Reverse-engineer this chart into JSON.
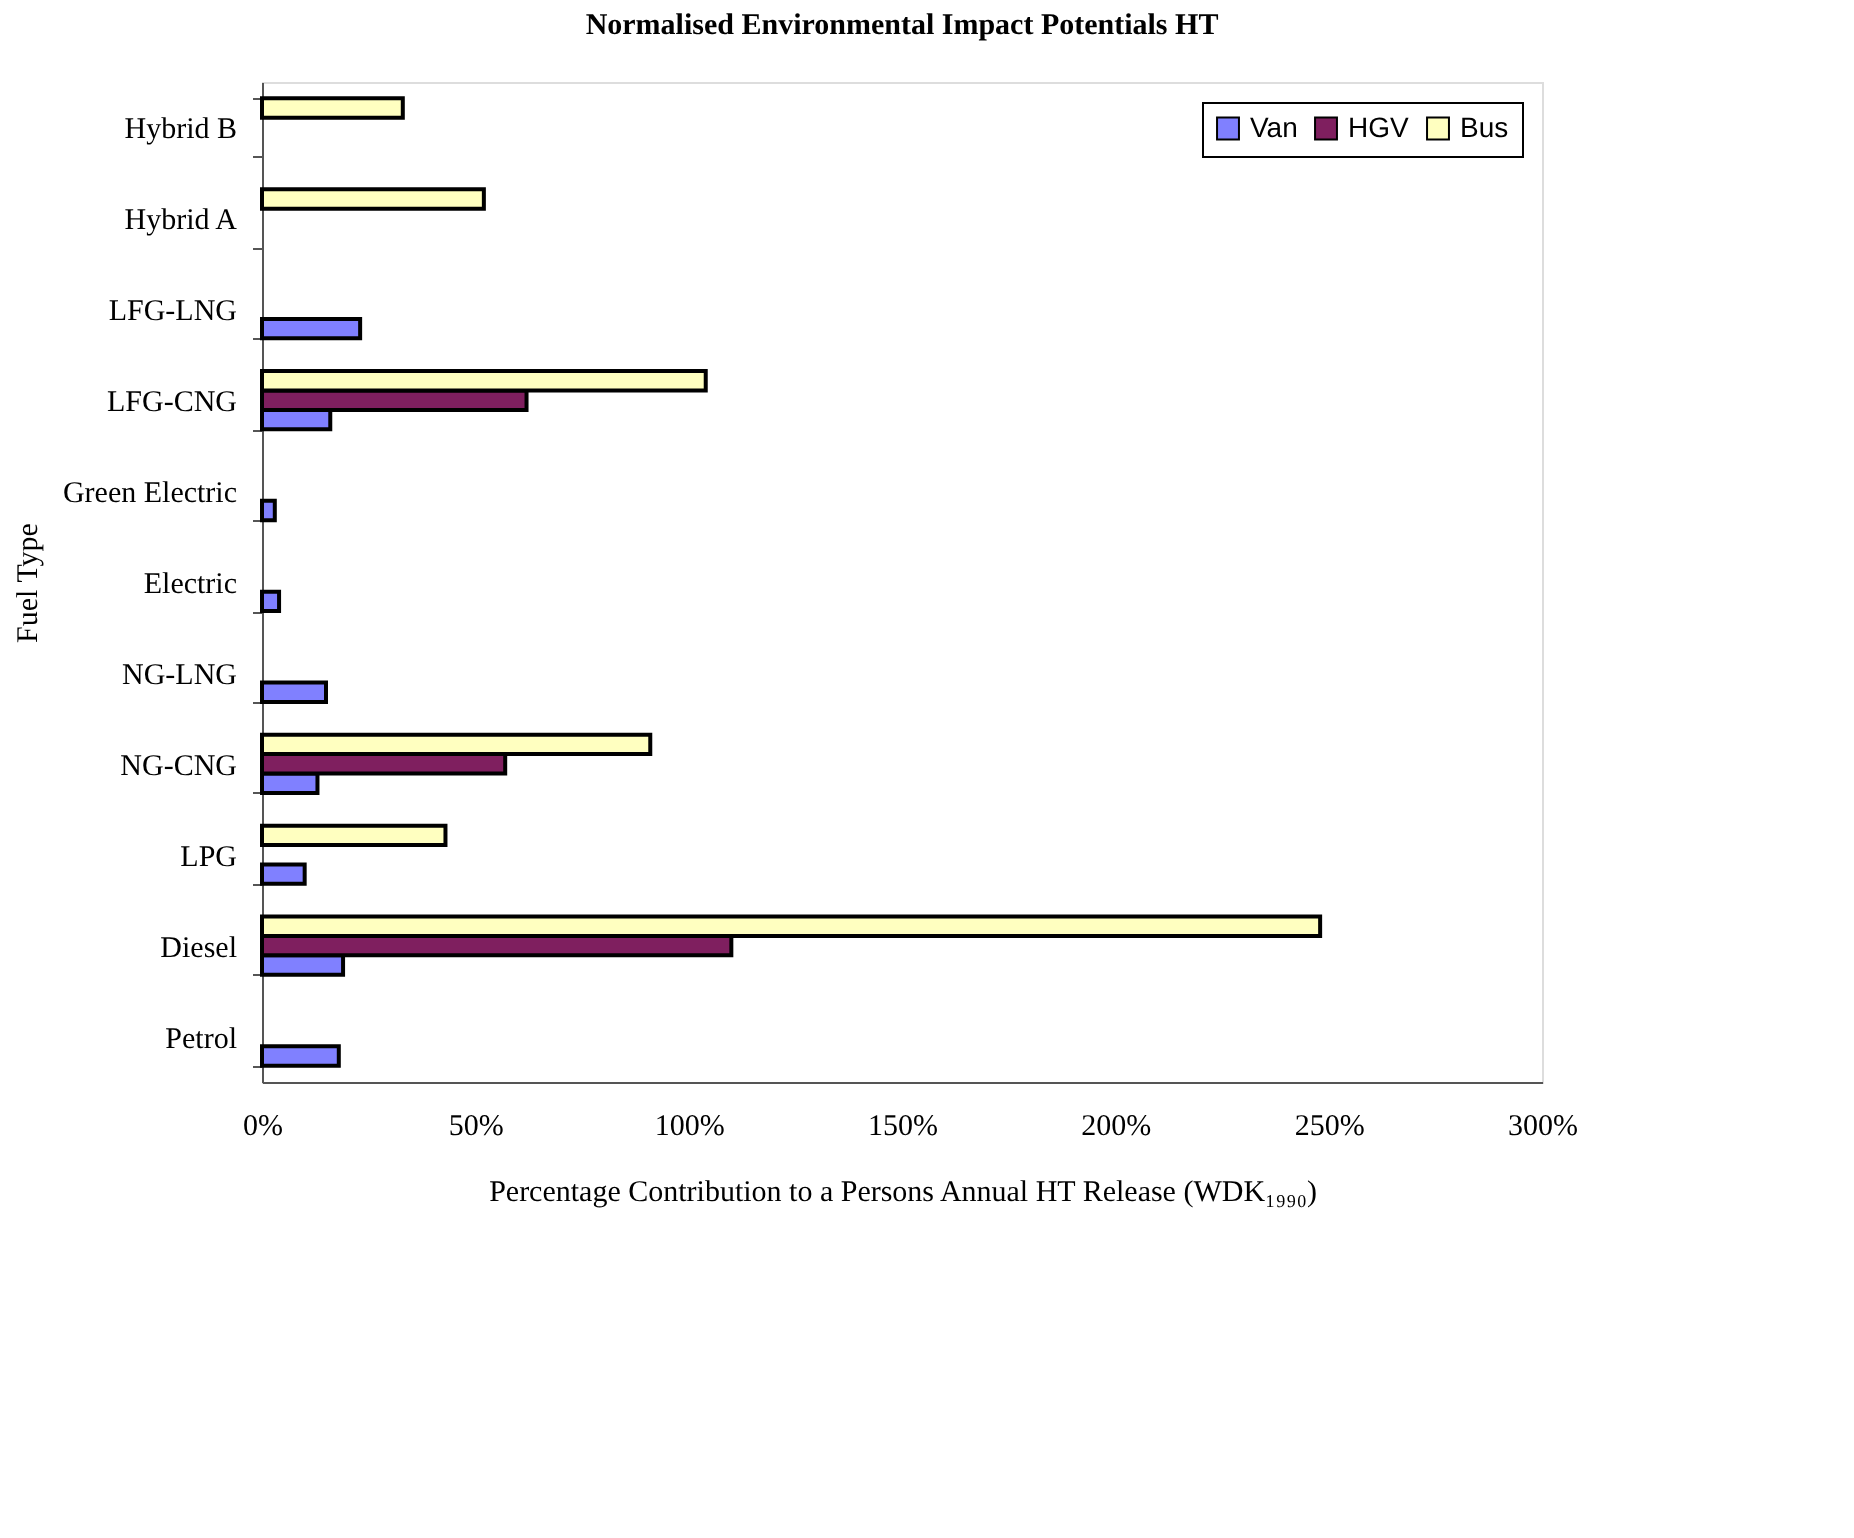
{
  "chart_data": {
    "type": "bar",
    "orientation": "horizontal",
    "title": "Normalised Environmental Impact Potentials HT",
    "xlabel": "Percentage Contribution to a Persons Annual HT Release (WDK₁₉₉₀)",
    "ylabel": "Fuel Type",
    "categories": [
      "Hybrid B",
      "Hybrid A",
      "LFG-LNG",
      "LFG-CNG",
      "Green Electric",
      "Electric",
      "NG-LNG",
      "NG-CNG",
      "LPG",
      "Diesel",
      "Petrol"
    ],
    "series": [
      {
        "name": "Van",
        "color": "#8080ff",
        "values": [
          null,
          null,
          23,
          16,
          3,
          4,
          15,
          13,
          10,
          19,
          18
        ]
      },
      {
        "name": "HGV",
        "color": "#7f1f5f",
        "values": [
          null,
          null,
          null,
          62,
          null,
          null,
          null,
          57,
          null,
          110,
          null
        ]
      },
      {
        "name": "Bus",
        "color": "#ffffc0",
        "values": [
          33,
          52,
          null,
          104,
          null,
          null,
          null,
          91,
          43,
          248,
          null
        ]
      }
    ],
    "xlim": [
      0,
      300
    ],
    "xticks": [
      {
        "value": 0,
        "label": "0%"
      },
      {
        "value": 50,
        "label": "50%"
      },
      {
        "value": 100,
        "label": "100%"
      },
      {
        "value": 150,
        "label": "150%"
      },
      {
        "value": 200,
        "label": "200%"
      },
      {
        "value": 250,
        "label": "250%"
      },
      {
        "value": 300,
        "label": "300%"
      }
    ],
    "grid": false,
    "legend": "top right"
  }
}
